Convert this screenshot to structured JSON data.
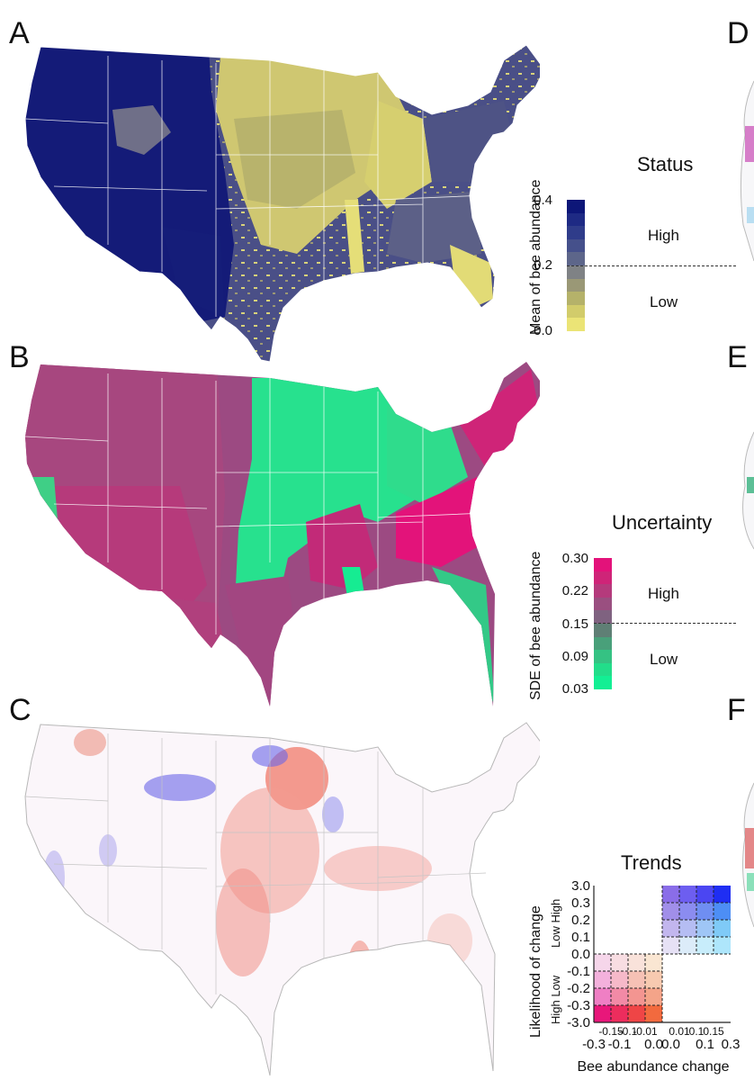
{
  "panels": {
    "A": {
      "letter": "A",
      "legend": {
        "title": "Status",
        "axis_title": "Mean of bee abundance",
        "ticks": [
          "0.4",
          "0.2",
          "0.0"
        ],
        "high_label": "High",
        "low_label": "Low",
        "colors": [
          "#0d1678",
          "#1e2a84",
          "#2f3c8a",
          "#45508b",
          "#5d668a",
          "#7f8285",
          "#9a9876",
          "#b5b26a",
          "#d2cc6b",
          "#ebe476"
        ]
      }
    },
    "B": {
      "letter": "B",
      "legend": {
        "title": "Uncertainty",
        "axis_title": "SDE of bee abundance",
        "ticks": [
          "0.30",
          "0.22",
          "0.15",
          "0.09",
          "0.03"
        ],
        "high_label": "High",
        "low_label": "Low",
        "colors": [
          "#e3127a",
          "#cf2478",
          "#b53a7c",
          "#9a4f80",
          "#7f6280",
          "#5f7f75",
          "#49a07a",
          "#35c283",
          "#22dd8a",
          "#13ef94"
        ]
      }
    },
    "C": {
      "letter": "C",
      "legend": {
        "title": "Trends",
        "y_axis_title": "Likelihood of change",
        "y_sub_labels": [
          "Low High",
          "High Low"
        ],
        "y_ticks": [
          "3.0",
          "0.3",
          "0.2",
          "0.1",
          "0.0",
          "-0.1",
          "-0.2",
          "-0.3",
          "-3.0"
        ],
        "x_ticks_top": [
          "-0.15",
          "-0.1",
          "-0.01",
          "0.01",
          "0.1",
          "0.15"
        ],
        "x_ticks_bottom": [
          "-0.3",
          "-0.1",
          "0.0",
          "0.0",
          "0.1",
          "0.3"
        ],
        "x_axis_title": "Bee abundance change"
      }
    },
    "D": {
      "letter": "D"
    },
    "E": {
      "letter": "E"
    },
    "F": {
      "letter": "F"
    }
  },
  "chart_data": [
    {
      "type": "heatmap",
      "title": "Status",
      "ylabel": "Mean of bee abundance",
      "ylim": [
        0.0,
        0.4
      ],
      "threshold": 0.2,
      "categories": [
        "Low",
        "High"
      ]
    },
    {
      "type": "heatmap",
      "title": "Uncertainty",
      "ylabel": "SDE of bee abundance",
      "ylim": [
        0.03,
        0.3
      ],
      "threshold": 0.15,
      "categories": [
        "Low",
        "High"
      ]
    },
    {
      "type": "heatmap",
      "title": "Trends",
      "xlabel": "Bee abundance change",
      "ylabel": "Likelihood of change",
      "x_bins": [
        -0.3,
        -0.15,
        -0.1,
        -0.01,
        0.0,
        0.01,
        0.1,
        0.15,
        0.3
      ],
      "y_bins": [
        -3.0,
        -0.3,
        -0.2,
        -0.1,
        0.0,
        0.1,
        0.2,
        0.3,
        3.0
      ],
      "increase_colors": [
        [
          "#8a6de8",
          "#6d5ef0",
          "#4b46f2",
          "#1f2ef3"
        ],
        [
          "#a18fe9",
          "#8b8cf0",
          "#6f8ef2",
          "#4d8ef5"
        ],
        [
          "#c2b6ee",
          "#b5bdf3",
          "#9fc6f6",
          "#7fcaf7"
        ],
        [
          "#e6e1f5",
          "#dcecf9",
          "#c8edfb",
          "#aee6fb"
        ]
      ],
      "decrease_colors": [
        [
          "#f6d6ea",
          "#f8dde2",
          "#f9e2da",
          "#fae6d2"
        ],
        [
          "#f3b1dc",
          "#f6b9c9",
          "#f6c1b5",
          "#f7cab0"
        ],
        [
          "#ef7fc4",
          "#f28aa6",
          "#f39591",
          "#f4a489"
        ],
        [
          "#e8177a",
          "#ec2d5d",
          "#ef4546",
          "#f26a3e"
        ]
      ]
    }
  ]
}
